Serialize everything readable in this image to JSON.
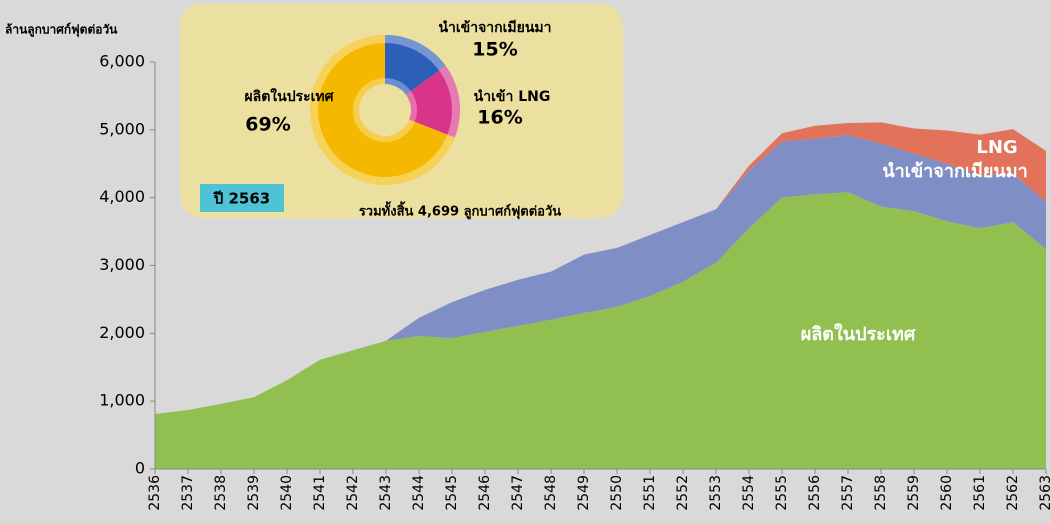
{
  "chart_data": [
    {
      "type": "area",
      "stacked": true,
      "ylabel": "ล้านลูกบาศก์ฟุตต่อวัน",
      "categories": [
        "2536",
        "2537",
        "2538",
        "2539",
        "2540",
        "2541",
        "2542",
        "2543",
        "2544",
        "2545",
        "2546",
        "2547",
        "2548",
        "2549",
        "2550",
        "2551",
        "2552",
        "2553",
        "2554",
        "2555",
        "2556",
        "2557",
        "2558",
        "2559",
        "2560",
        "2561",
        "2562",
        "2563"
      ],
      "series": [
        {
          "name": "ผลิตในประเทศ",
          "color": "#92c050",
          "values": [
            810,
            870,
            960,
            1060,
            1310,
            1610,
            1750,
            1890,
            1960,
            1930,
            2020,
            2110,
            2200,
            2300,
            2390,
            2550,
            2760,
            3040,
            3550,
            4000,
            4050,
            4080,
            3870,
            3800,
            3650,
            3550,
            3640,
            3240
          ]
        },
        {
          "name": "นำเข้าจากเมียนมา",
          "color": "#7f8fc6",
          "values": [
            0,
            0,
            0,
            0,
            0,
            0,
            0,
            0,
            270,
            530,
            620,
            680,
            710,
            860,
            870,
            900,
            880,
            790,
            850,
            830,
            820,
            840,
            930,
            850,
            850,
            780,
            720,
            700
          ]
        },
        {
          "name": "LNG",
          "color": "#e2735a",
          "values": [
            0,
            0,
            0,
            0,
            0,
            0,
            0,
            0,
            0,
            0,
            0,
            0,
            0,
            0,
            0,
            0,
            0,
            0,
            70,
            120,
            190,
            180,
            310,
            370,
            490,
            600,
            650,
            750
          ]
        }
      ],
      "ylim": [
        0,
        6000
      ],
      "yticks": [
        0,
        {
          "value": 1000,
          "label": "1,000"
        },
        {
          "value": 2000,
          "label": "2,000"
        },
        {
          "value": 3000,
          "label": "3,000"
        },
        {
          "value": 4000,
          "label": "4,000"
        },
        {
          "value": 5000,
          "label": "5,000"
        },
        {
          "value": 6000,
          "label": "6,000"
        }
      ],
      "grid": false
    },
    {
      "type": "pie",
      "donut": true,
      "title": "ปี 2563",
      "note": "รวมทั้งสิ้น 4,699 ลูกบาศก์ฟุตต่อวัน",
      "categories": [
        "นำเข้าจากเมียนมา",
        "นำเข้า LNG",
        "ผลิตในประเทศ"
      ],
      "values": [
        15,
        16,
        69
      ],
      "value_labels": [
        "15%",
        "16%",
        "69%"
      ],
      "colors": [
        "#2c5fb8",
        "#d9338a",
        "#f5b800"
      ]
    }
  ]
}
